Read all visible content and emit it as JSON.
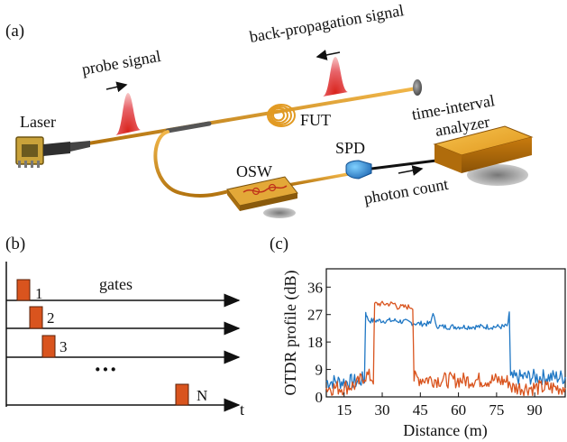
{
  "panel_a": {
    "label": "(a)",
    "laser": "Laser",
    "probe_signal": "probe signal",
    "back_propagation_signal": "back-propagation signal",
    "fut": "FUT",
    "osw": "OSW",
    "spd": "SPD",
    "photon_count": "photon count",
    "analyzer_line1": "time-interval",
    "analyzer_line2": "analyzer"
  },
  "panel_b": {
    "label": "(b)",
    "gates": "gates",
    "pulse_labels": [
      "1",
      "2",
      "3",
      "N"
    ],
    "ellipsis": "···",
    "time_label": "t",
    "pulse_color": "#d9541e"
  },
  "chart_data": {
    "type": "line",
    "panel_label": "(c)",
    "xlabel": "Distance (m)",
    "ylabel": "OTDR profile (dB)",
    "xlim": [
      8,
      102
    ],
    "ylim": [
      0,
      42
    ],
    "xticks": [
      15,
      30,
      45,
      60,
      75,
      90
    ],
    "yticks": [
      0,
      9,
      18,
      27,
      36
    ],
    "grid": false,
    "series": [
      {
        "color": "#1f77c4",
        "x": [
          8,
          14,
          20,
          23,
          23.5,
          24,
          25,
          30,
          35,
          40,
          44,
          47,
          49,
          50,
          51,
          53,
          60,
          70,
          78,
          79.5,
          80,
          80.5,
          81,
          85,
          90,
          95,
          102
        ],
        "y": [
          5,
          5,
          5,
          6,
          28,
          26,
          25,
          25,
          25,
          24.5,
          24,
          24,
          24,
          28,
          23.5,
          23,
          23,
          23,
          23,
          23.5,
          28,
          6,
          6,
          6.5,
          6.5,
          6.5,
          6.5
        ]
      },
      {
        "color": "#d9541e",
        "x": [
          8,
          14,
          20,
          23,
          24,
          26.5,
          27,
          30,
          33,
          35,
          36,
          39,
          42,
          42.5,
          45,
          55,
          65,
          75,
          80,
          81,
          90,
          102
        ],
        "y": [
          3,
          3,
          4,
          7,
          7,
          6,
          30.5,
          30.5,
          30.5,
          30.5,
          29.5,
          29.5,
          29.5,
          6,
          6,
          5.5,
          5.5,
          5.5,
          5,
          3,
          3,
          3
        ]
      }
    ]
  }
}
